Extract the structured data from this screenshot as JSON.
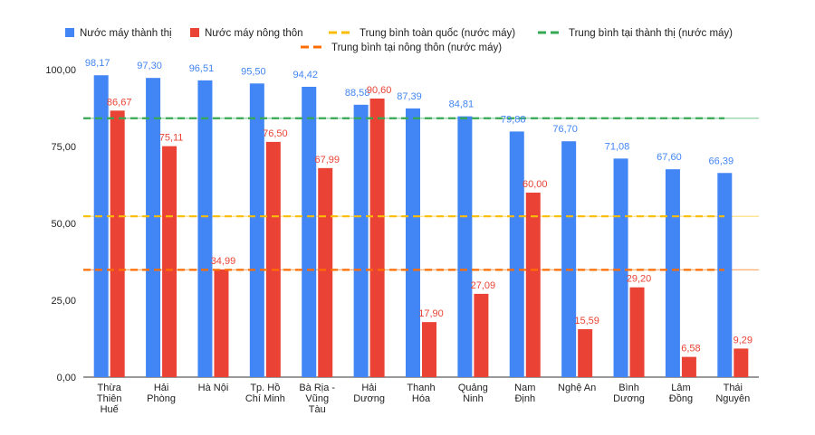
{
  "chart_data": {
    "type": "bar",
    "categories": [
      "Thừa Thiên Huế",
      "Hải Phòng",
      "Hà Nội",
      "Tp. Hồ Chí Minh",
      "Bà Rịa - Vũng Tàu",
      "Hải Dương",
      "Thanh Hóa",
      "Quảng Ninh",
      "Nam Định",
      "Nghệ An",
      "Bình Dương",
      "Lâm Đồng",
      "Thái Nguyên"
    ],
    "category_lines": [
      [
        "Thừa",
        "Thiên",
        "Huế"
      ],
      [
        "Hải",
        "Phòng"
      ],
      [
        "Hà Nội"
      ],
      [
        "Tp. Hồ",
        "Chí Minh"
      ],
      [
        "Bà Rịa -",
        "Vũng",
        "Tàu"
      ],
      [
        "Hải",
        "Dương"
      ],
      [
        "Thanh",
        "Hóa"
      ],
      [
        "Quảng",
        "Ninh"
      ],
      [
        "Nam",
        "Định"
      ],
      [
        "Nghệ An"
      ],
      [
        "Bình",
        "Dương"
      ],
      [
        "Lâm",
        "Đồng"
      ],
      [
        "Thái",
        "Nguyên"
      ]
    ],
    "series": [
      {
        "name": "Nước máy thành thị",
        "color": "#4285f4",
        "values": [
          98.17,
          97.3,
          96.51,
          95.5,
          94.42,
          88.58,
          87.39,
          84.81,
          79.88,
          76.7,
          71.08,
          67.6,
          66.39
        ],
        "labels": [
          "98,17",
          "97,30",
          "96,51",
          "95,50",
          "94,42",
          "88,58",
          "87,39",
          "84,81",
          "79,88",
          "76,70",
          "71,08",
          "67,60",
          "66,39"
        ]
      },
      {
        "name": "Nước máy nông thôn",
        "color": "#ea4335",
        "values": [
          86.67,
          75.11,
          34.99,
          76.5,
          67.99,
          90.6,
          17.9,
          27.09,
          60.0,
          15.59,
          29.2,
          6.58,
          9.29
        ],
        "labels": [
          "86,67",
          "75,11",
          "34,99",
          "76,50",
          "67,99",
          "90,60",
          "17,90",
          "27,09",
          "60,00",
          "15,59",
          "29,20",
          "6,58",
          "9,29"
        ]
      }
    ],
    "reference_lines": [
      {
        "name": "Trung bình toàn quốc (nước máy)",
        "value": 52.3,
        "color": "#fbbc04"
      },
      {
        "name": "Trung bình tại thành thị (nước máy)",
        "value": 84.2,
        "color": "#34a853"
      },
      {
        "name": "Trung bình tại nông thôn (nước máy)",
        "value": 34.9,
        "color": "#ff6d01"
      }
    ],
    "ylim": [
      0,
      100
    ],
    "yticks": [
      0,
      25,
      50,
      75,
      100
    ],
    "ytick_labels": [
      "0,00",
      "25,00",
      "50,00",
      "75,00",
      "100,00"
    ],
    "legend_position": "top",
    "grid": false
  }
}
